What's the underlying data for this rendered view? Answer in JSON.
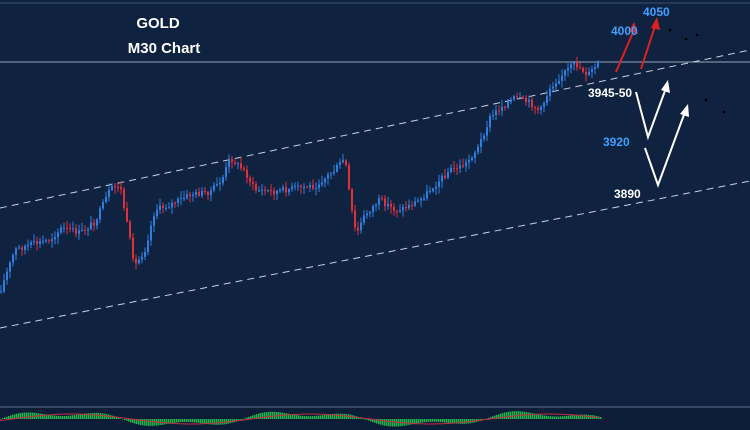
{
  "chart_data": {
    "type": "candlestick",
    "title": "GOLD",
    "subtitle": "M30 Chart",
    "colors": {
      "background": "#0f2240",
      "bull": "#2f7fe0",
      "bear": "#e0303a",
      "channel": "#c8d2e0",
      "target_blue": "#3fa0ff",
      "label_white": "#ffffff",
      "arrow_red": "#e02020",
      "arrow_white": "#ffffff",
      "osc_green": "#23b34a"
    },
    "annotations": {
      "up_target_1": "4000",
      "up_target_2": "4050",
      "support_1": "3945-50",
      "support_2": "3920",
      "support_3": "3890"
    }
  }
}
